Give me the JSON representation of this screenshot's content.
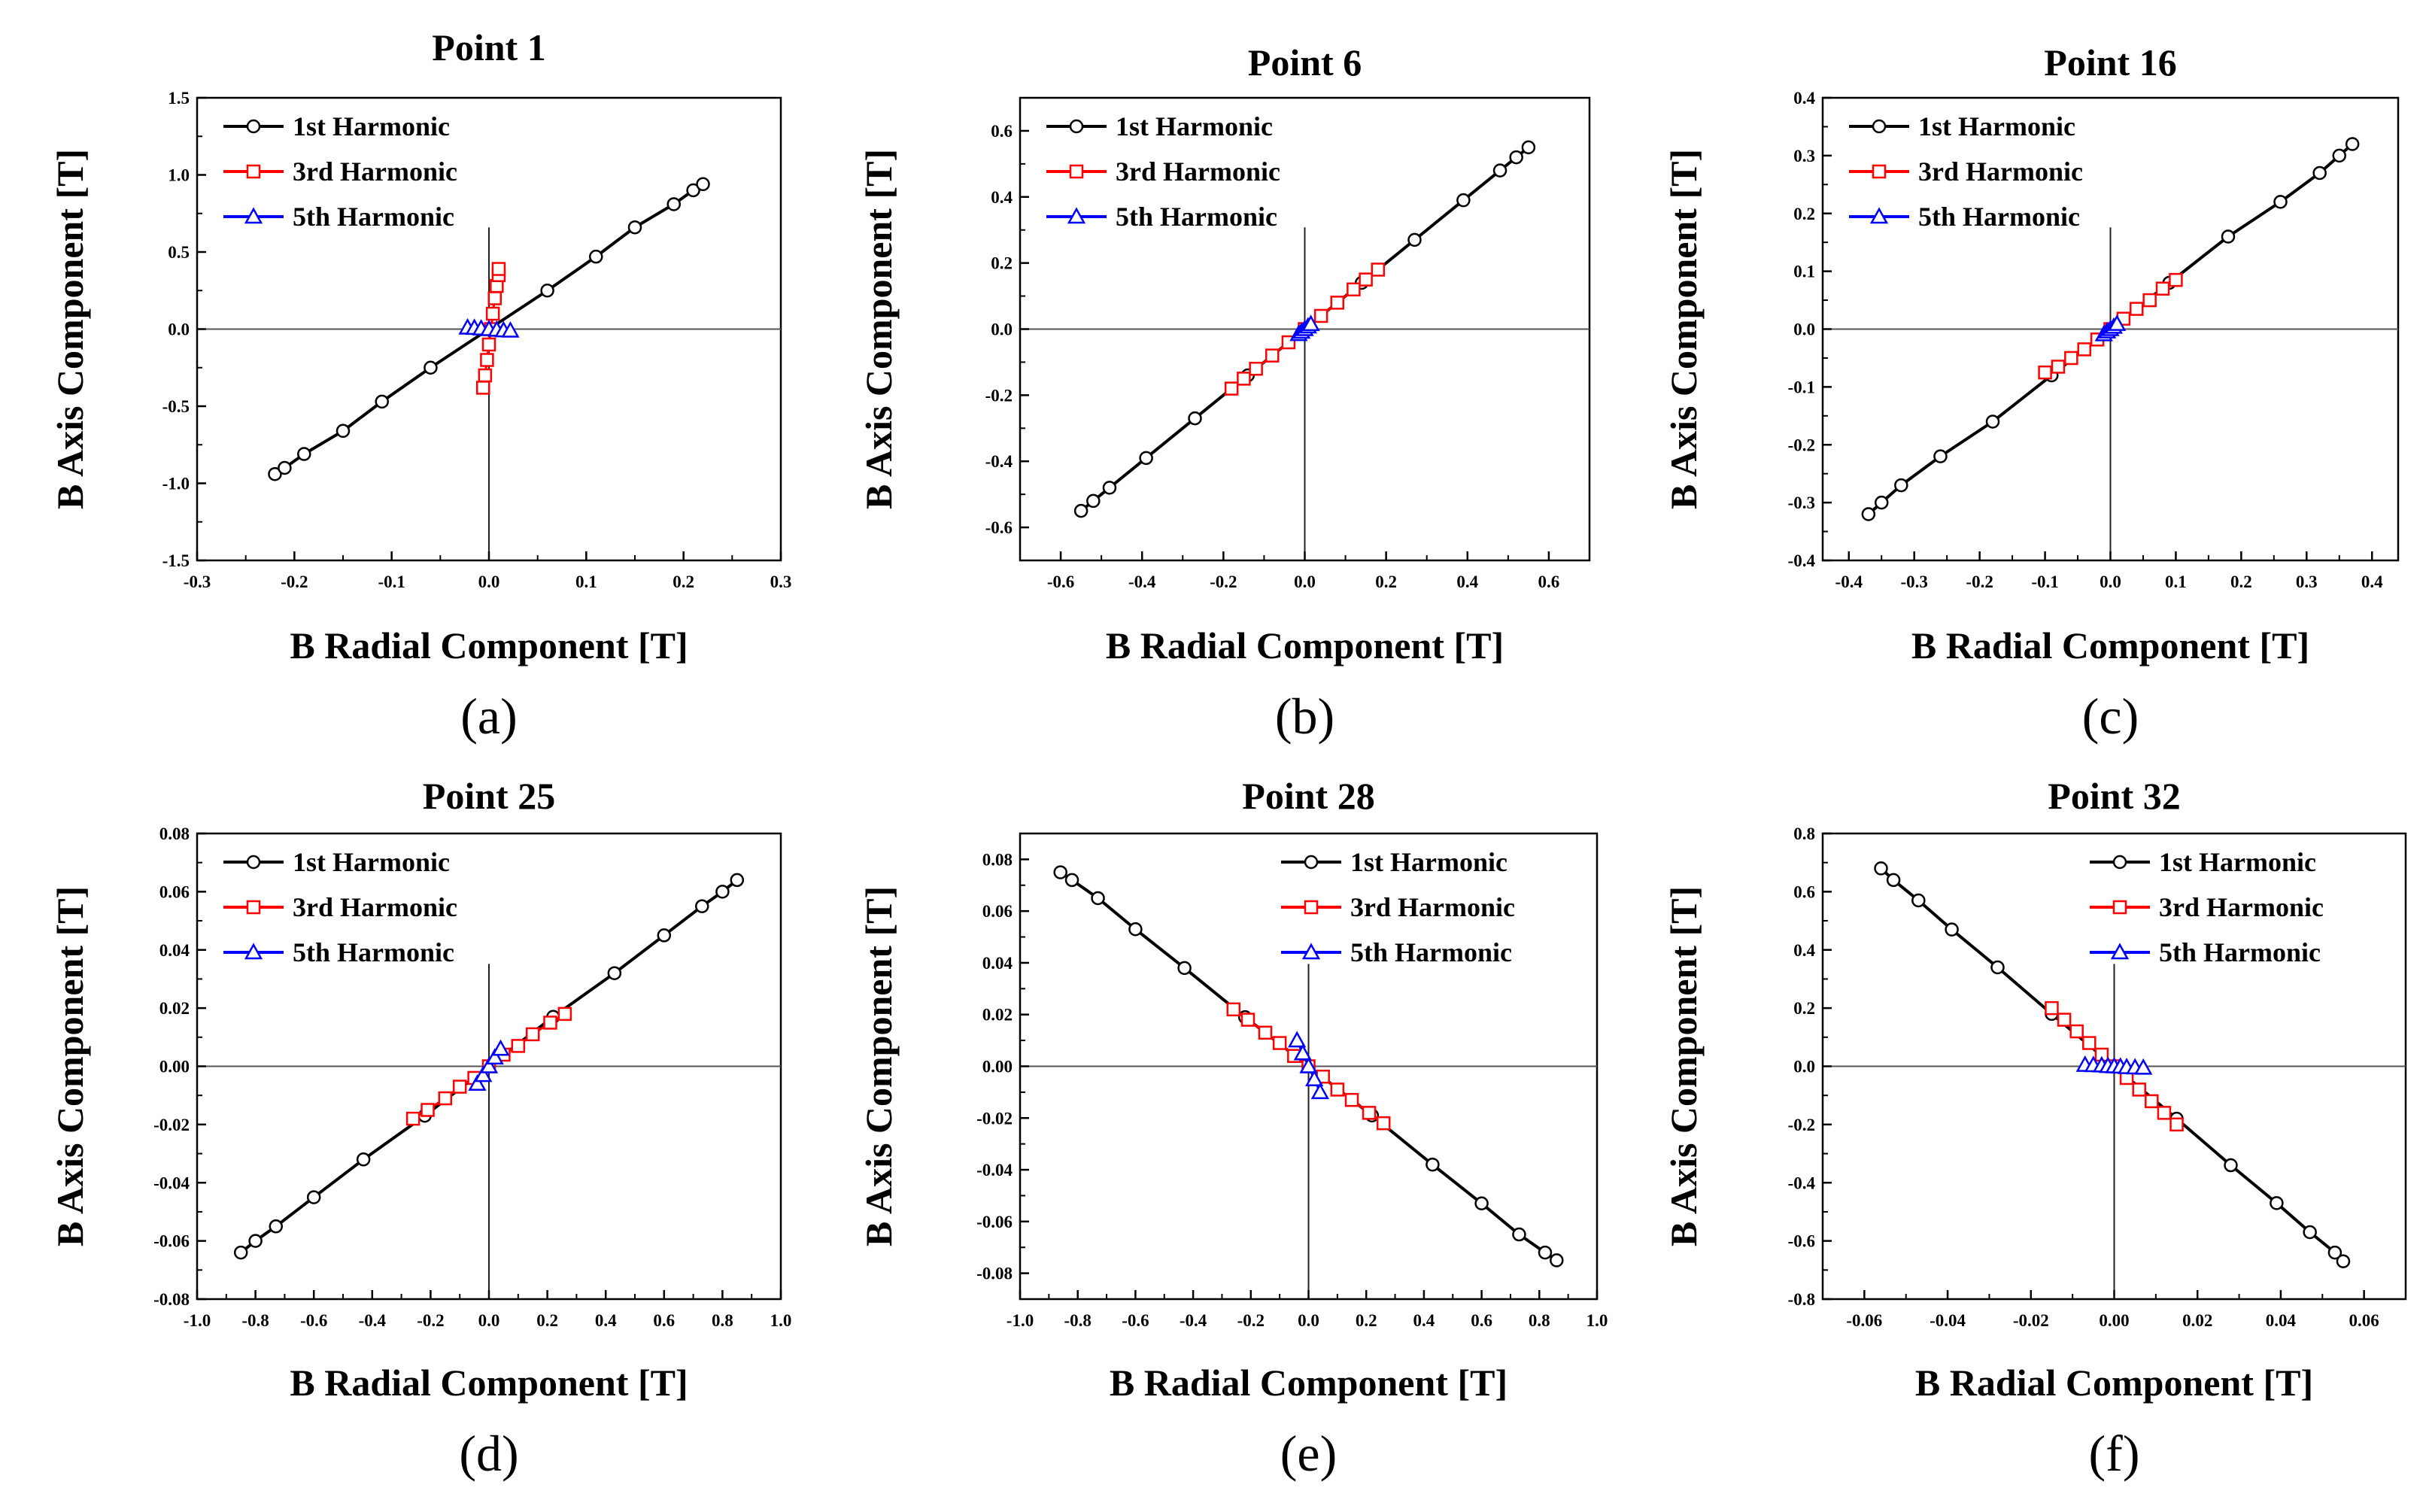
{
  "chart_data": [
    {
      "type": "line",
      "panel_label": "(a)",
      "title": "Point 1",
      "xlabel": "B Radial Component [T]",
      "ylabel": "B Axis Component [T]",
      "xlim": [
        -0.3,
        0.3
      ],
      "ylim": [
        -1.5,
        1.5
      ],
      "xticks": [
        -0.3,
        -0.2,
        -0.1,
        0.0,
        0.1,
        0.2,
        0.3
      ],
      "xtick_labels": [
        "-0.3",
        "-0.2",
        "-0.1",
        "0.0",
        "0.1",
        "0.2",
        "0.3"
      ],
      "yticks": [
        -1.5,
        -1.0,
        -0.5,
        0.0,
        0.5,
        1.0,
        1.5
      ],
      "ytick_labels": [
        "-1.5",
        "-1.0",
        "-0.5",
        "0.0",
        "0.5",
        "1.0",
        "1.5"
      ],
      "legend_position": "top-left",
      "series": [
        {
          "name": "1st Harmonic",
          "color": "#000000",
          "marker": "circle",
          "x": [
            -0.22,
            -0.21,
            -0.19,
            -0.15,
            -0.11,
            -0.06,
            0.0,
            0.06,
            0.11,
            0.15,
            0.19,
            0.21,
            0.22
          ],
          "y": [
            -0.94,
            -0.9,
            -0.81,
            -0.66,
            -0.47,
            -0.25,
            0.0,
            0.25,
            0.47,
            0.66,
            0.81,
            0.9,
            0.94
          ]
        },
        {
          "name": "3rd  Harmonic",
          "color": "#ff0000",
          "marker": "square",
          "x": [
            -0.006,
            -0.004,
            -0.002,
            0.0,
            0.002,
            0.004,
            0.006,
            0.008,
            0.01,
            0.01
          ],
          "y": [
            -0.38,
            -0.3,
            -0.2,
            -0.1,
            0.0,
            0.1,
            0.2,
            0.28,
            0.35,
            0.39
          ]
        },
        {
          "name": "5th Harmonic",
          "color": "#0000ff",
          "marker": "triangle",
          "x": [
            -0.022,
            -0.015,
            -0.008,
            0.0,
            0.008,
            0.015,
            0.022
          ],
          "y": [
            0.01,
            0.008,
            0.004,
            0.0,
            -0.004,
            -0.008,
            -0.01
          ]
        }
      ]
    },
    {
      "type": "line",
      "panel_label": "(b)",
      "title": "Point 6",
      "xlabel": "B Radial Component [T]",
      "ylabel": "B Axis Component [T]",
      "xlim": [
        -0.7,
        0.7
      ],
      "ylim": [
        -0.7,
        0.7
      ],
      "xticks": [
        -0.6,
        -0.4,
        -0.2,
        0.0,
        0.2,
        0.4,
        0.6
      ],
      "xtick_labels": [
        "-0.6",
        "-0.4",
        "-0.2",
        "0.0",
        "0.2",
        "0.4",
        "0.6"
      ],
      "yticks": [
        -0.6,
        -0.4,
        -0.2,
        0.0,
        0.2,
        0.4,
        0.6
      ],
      "ytick_labels": [
        "-0.6",
        "-0.4",
        "-0.2",
        "0.0",
        "0.2",
        "0.4",
        "0.6"
      ],
      "legend_position": "top-left",
      "series": [
        {
          "name": "1st Harmonic",
          "color": "#000000",
          "marker": "circle",
          "x": [
            -0.55,
            -0.52,
            -0.48,
            -0.39,
            -0.27,
            -0.14,
            0.0,
            0.14,
            0.27,
            0.39,
            0.48,
            0.52,
            0.55
          ],
          "y": [
            -0.55,
            -0.52,
            -0.48,
            -0.39,
            -0.27,
            -0.14,
            0.0,
            0.14,
            0.27,
            0.39,
            0.48,
            0.52,
            0.55
          ]
        },
        {
          "name": "3rd Harmonic",
          "color": "#ff0000",
          "marker": "square",
          "x": [
            -0.18,
            -0.15,
            -0.12,
            -0.08,
            -0.04,
            0.0,
            0.04,
            0.08,
            0.12,
            0.15,
            0.18
          ],
          "y": [
            -0.18,
            -0.15,
            -0.12,
            -0.08,
            -0.04,
            0.0,
            0.04,
            0.08,
            0.12,
            0.15,
            0.18
          ]
        },
        {
          "name": "5th Harmonic",
          "color": "#0000ff",
          "marker": "triangle",
          "x": [
            -0.015,
            -0.008,
            0.0,
            0.008,
            0.015
          ],
          "y": [
            -0.015,
            -0.008,
            0.0,
            0.008,
            0.015
          ]
        }
      ]
    },
    {
      "type": "line",
      "panel_label": "(c)",
      "title": "Point 16",
      "xlabel": "B Radial Component [T]",
      "ylabel": "B Axis Component [T]",
      "xlim": [
        -0.44,
        0.44
      ],
      "ylim": [
        -0.4,
        0.4
      ],
      "xticks": [
        -0.4,
        -0.3,
        -0.2,
        -0.1,
        0.0,
        0.1,
        0.2,
        0.3,
        0.4
      ],
      "xtick_labels": [
        "-0.4",
        "-0.3",
        "-0.2",
        "-0.1",
        "0.0",
        "0.1",
        "0.2",
        "0.3",
        "0.4"
      ],
      "yticks": [
        -0.4,
        -0.3,
        -0.2,
        -0.1,
        0.0,
        0.1,
        0.2,
        0.3,
        0.4
      ],
      "ytick_labels": [
        "-0.4",
        "-0.3",
        "-0.2",
        "-0.1",
        "0.0",
        "0.1",
        "0.2",
        "0.3",
        "0.4"
      ],
      "legend_position": "top-left",
      "series": [
        {
          "name": "1st Harmonic",
          "color": "#000000",
          "marker": "circle",
          "x": [
            -0.37,
            -0.35,
            -0.32,
            -0.26,
            -0.18,
            -0.09,
            0.0,
            0.09,
            0.18,
            0.26,
            0.32,
            0.35,
            0.37
          ],
          "y": [
            -0.32,
            -0.3,
            -0.27,
            -0.22,
            -0.16,
            -0.08,
            0.0,
            0.08,
            0.16,
            0.22,
            0.27,
            0.3,
            0.32
          ]
        },
        {
          "name": "3rd Harmonic",
          "color": "#ff0000",
          "marker": "square",
          "x": [
            -0.1,
            -0.08,
            -0.06,
            -0.04,
            -0.02,
            0.0,
            0.02,
            0.04,
            0.06,
            0.08,
            0.1
          ],
          "y": [
            -0.075,
            -0.065,
            -0.05,
            -0.035,
            -0.018,
            0.0,
            0.018,
            0.035,
            0.05,
            0.07,
            0.085
          ]
        },
        {
          "name": "5th Harmonic",
          "color": "#0000ff",
          "marker": "triangle",
          "x": [
            -0.01,
            -0.005,
            0.0,
            0.005,
            0.01
          ],
          "y": [
            -0.009,
            -0.004,
            0.0,
            0.004,
            0.009
          ]
        }
      ]
    },
    {
      "type": "line",
      "panel_label": "(d)",
      "title": "Point 25",
      "xlabel": "B Radial Component [T]",
      "ylabel": "B Axis Component [T]",
      "xlim": [
        -1.0,
        1.0
      ],
      "ylim": [
        -0.08,
        0.08
      ],
      "xticks": [
        -1.0,
        -0.8,
        -0.6,
        -0.4,
        -0.2,
        0.0,
        0.2,
        0.4,
        0.6,
        0.8,
        1.0
      ],
      "xtick_labels": [
        "-1.0",
        "-0.8",
        "-0.6",
        "-0.4",
        "-0.2",
        "0.0",
        "0.2",
        "0.4",
        "0.6",
        "0.8",
        "1.0"
      ],
      "yticks": [
        -0.08,
        -0.06,
        -0.04,
        -0.02,
        0.0,
        0.02,
        0.04,
        0.06,
        0.08
      ],
      "ytick_labels": [
        "-0.08",
        "-0.06",
        "-0.04",
        "-0.02",
        "0.00",
        "0.02",
        "0.04",
        "0.06",
        "0.08"
      ],
      "legend_position": "top-left",
      "series": [
        {
          "name": "1st Harmonic",
          "color": "#000000",
          "marker": "circle",
          "x": [
            -0.85,
            -0.8,
            -0.73,
            -0.6,
            -0.43,
            -0.22,
            0.0,
            0.22,
            0.43,
            0.6,
            0.73,
            0.8,
            0.85
          ],
          "y": [
            -0.064,
            -0.06,
            -0.055,
            -0.045,
            -0.032,
            -0.017,
            0.0,
            0.017,
            0.032,
            0.045,
            0.055,
            0.06,
            0.064
          ]
        },
        {
          "name": "3rd Harmonic",
          "color": "#ff0000",
          "marker": "square",
          "x": [
            -0.26,
            -0.21,
            -0.15,
            -0.1,
            -0.05,
            0.0,
            0.05,
            0.1,
            0.15,
            0.21,
            0.26
          ],
          "y": [
            -0.018,
            -0.015,
            -0.011,
            -0.007,
            -0.004,
            0.0,
            0.004,
            0.007,
            0.011,
            0.015,
            0.018
          ]
        },
        {
          "name": "5th Harmonic",
          "color": "#0000ff",
          "marker": "triangle",
          "x": [
            -0.04,
            -0.02,
            0.0,
            0.02,
            0.04
          ],
          "y": [
            -0.006,
            -0.003,
            0.0,
            0.003,
            0.006
          ]
        }
      ]
    },
    {
      "type": "line",
      "panel_label": "(e)",
      "title": "Point 28",
      "xlabel": "B Radial Component [T]",
      "ylabel": "B Axis Component [T]",
      "xlim": [
        -1.0,
        1.0
      ],
      "ylim": [
        -0.09,
        0.09
      ],
      "xticks": [
        -1.0,
        -0.8,
        -0.6,
        -0.4,
        -0.2,
        0.0,
        0.2,
        0.4,
        0.6,
        0.8,
        1.0
      ],
      "xtick_labels": [
        "-1.0",
        "-0.8",
        "-0.6",
        "-0.4",
        "-0.2",
        "0.0",
        "0.2",
        "0.4",
        "0.6",
        "0.8",
        "1.0"
      ],
      "yticks": [
        -0.08,
        -0.06,
        -0.04,
        -0.02,
        0.0,
        0.02,
        0.04,
        0.06,
        0.08
      ],
      "ytick_labels": [
        "-0.08",
        "-0.06",
        "-0.04",
        "-0.02",
        "0.00",
        "0.02",
        "0.04",
        "0.06",
        "0.08"
      ],
      "legend_position": "top-right",
      "series": [
        {
          "name": "1st Harmonic",
          "color": "#000000",
          "marker": "circle",
          "x": [
            -0.86,
            -0.82,
            -0.73,
            -0.6,
            -0.43,
            -0.22,
            0.0,
            0.22,
            0.43,
            0.6,
            0.73,
            0.82,
            0.86
          ],
          "y": [
            0.075,
            0.072,
            0.065,
            0.053,
            0.038,
            0.019,
            0.0,
            -0.019,
            -0.038,
            -0.053,
            -0.065,
            -0.072,
            -0.075
          ]
        },
        {
          "name": "3rd Harmonic",
          "color": "#ff0000",
          "marker": "square",
          "x": [
            -0.26,
            -0.21,
            -0.15,
            -0.1,
            -0.05,
            0.0,
            0.05,
            0.1,
            0.15,
            0.21,
            0.26
          ],
          "y": [
            0.022,
            0.018,
            0.013,
            0.009,
            0.004,
            0.0,
            -0.004,
            -0.009,
            -0.013,
            -0.018,
            -0.022
          ]
        },
        {
          "name": "5th Harmonic",
          "color": "#0000ff",
          "marker": "triangle",
          "x": [
            -0.04,
            -0.02,
            0.0,
            0.02,
            0.04
          ],
          "y": [
            0.01,
            0.005,
            0.0,
            -0.005,
            -0.01
          ]
        }
      ]
    },
    {
      "type": "line",
      "panel_label": "(f)",
      "title": "Point 32",
      "xlabel": "B Radial Component [T]",
      "ylabel": "B Axis Component [T]",
      "xlim": [
        -0.07,
        0.07
      ],
      "ylim": [
        -0.8,
        0.8
      ],
      "xticks": [
        -0.06,
        -0.04,
        -0.02,
        0.0,
        0.02,
        0.04,
        0.06
      ],
      "xtick_labels": [
        "-0.06",
        "-0.04",
        "-0.02",
        "0.00",
        "0.02",
        "0.04",
        "0.06"
      ],
      "yticks": [
        -0.8,
        -0.6,
        -0.4,
        -0.2,
        0.0,
        0.2,
        0.4,
        0.6,
        0.8
      ],
      "ytick_labels": [
        "-0.8",
        "-0.6",
        "-0.4",
        "-0.2",
        "0.0",
        "0.2",
        "0.4",
        "0.6",
        "0.8"
      ],
      "legend_position": "top-right",
      "series": [
        {
          "name": "1st Harmonic",
          "color": "#000000",
          "marker": "circle",
          "x": [
            -0.056,
            -0.053,
            -0.047,
            -0.039,
            -0.028,
            -0.015,
            0.0,
            0.015,
            0.028,
            0.039,
            0.047,
            0.053,
            0.055
          ],
          "y": [
            0.68,
            0.64,
            0.57,
            0.47,
            0.34,
            0.18,
            0.0,
            -0.18,
            -0.34,
            -0.47,
            -0.57,
            -0.64,
            -0.67
          ]
        },
        {
          "name": "3rd Harmonic",
          "color": "#ff0000",
          "marker": "square",
          "x": [
            -0.015,
            -0.012,
            -0.009,
            -0.006,
            -0.003,
            0.0,
            0.003,
            0.006,
            0.009,
            0.012,
            0.015
          ],
          "y": [
            0.2,
            0.16,
            0.12,
            0.08,
            0.04,
            0.0,
            -0.04,
            -0.08,
            -0.12,
            -0.16,
            -0.2
          ]
        },
        {
          "name": "5th Harmonic",
          "color": "#0000ff",
          "marker": "triangle",
          "x": [
            -0.007,
            -0.005,
            -0.003,
            -0.0015,
            0.0,
            0.0015,
            0.003,
            0.005,
            0.007
          ],
          "y": [
            0.005,
            0.004,
            0.003,
            0.001,
            0.0,
            -0.001,
            -0.003,
            -0.004,
            -0.005
          ]
        }
      ]
    }
  ]
}
